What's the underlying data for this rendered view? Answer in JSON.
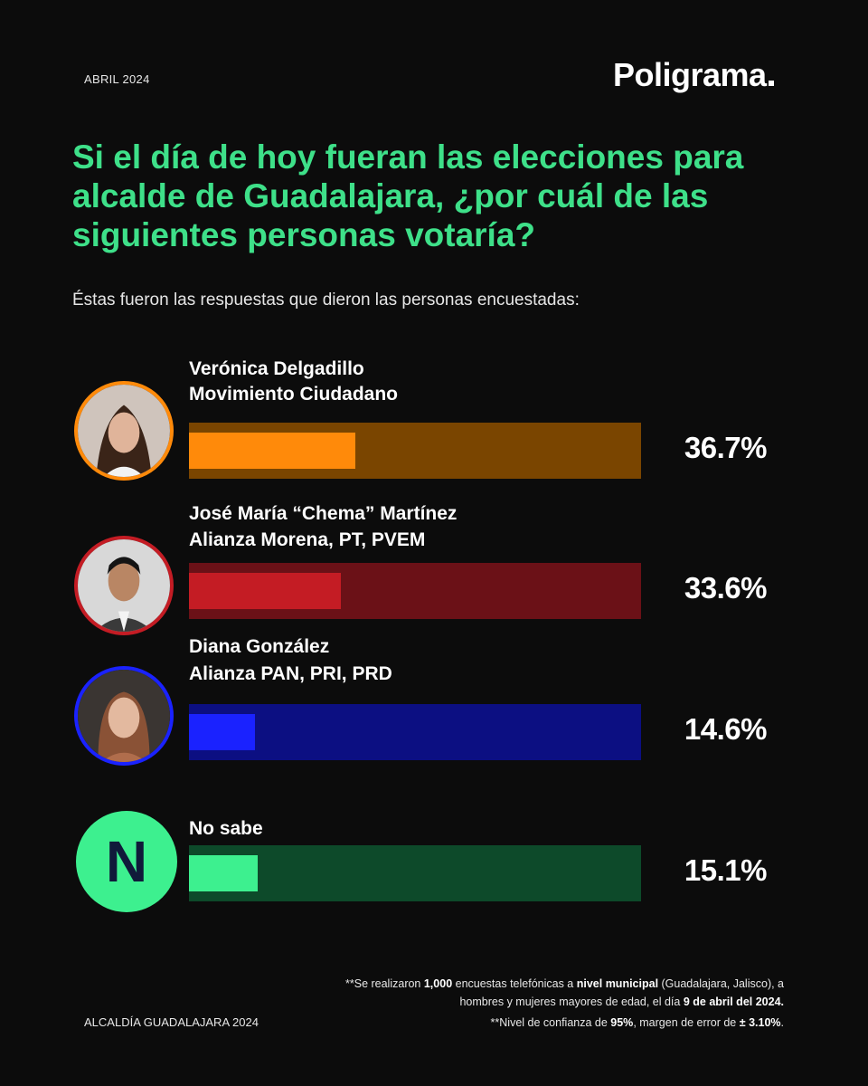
{
  "header": {
    "date": "ABRIL 2024",
    "brand": "Poligrama"
  },
  "question": "Si el día de hoy fueran las elecciones para alcalde de Guadalajara, ¿por cuál de las siguientes personas votaría?",
  "subtitle": "Éstas fueron las respuestas que dieron las personas encuestadas:",
  "colors": {
    "accent_green": "#3ee089",
    "orange": "#ff8a0a",
    "orange_track": "#7a4500",
    "red": "#c41c24",
    "red_track": "#6b1117",
    "blue": "#1a22ff",
    "blue_track": "#0c0f82",
    "green": "#3df08f",
    "green_track": "#0d4a2a"
  },
  "candidates": [
    {
      "name": "Verónica Delgadillo",
      "party": "Movimiento Ciudadano",
      "percent_label": "36.7%",
      "value": 36.7,
      "icon": "woman-portrait-icon"
    },
    {
      "name": "José María “Chema” Martínez",
      "party": "Alianza Morena, PT, PVEM",
      "percent_label": "33.6%",
      "value": 33.6,
      "icon": "man-portrait-icon"
    },
    {
      "name": "Diana González",
      "party": "Alianza PAN, PRI, PRD",
      "percent_label": "14.6%",
      "value": 14.6,
      "icon": "woman-portrait-icon"
    }
  ],
  "no_sabe": {
    "logo_letter": "N",
    "label": "No sabe",
    "percent_label": "15.1%",
    "value": 15.1
  },
  "chart_data": {
    "type": "bar",
    "categories": [
      "Verónica Delgadillo",
      "José María “Chema” Martínez",
      "Diana González",
      "No sabe"
    ],
    "values": [
      36.7,
      33.6,
      14.6,
      15.1
    ],
    "title": "Si el día de hoy fueran las elecciones para alcalde de Guadalajara, ¿por cuál de las siguientes personas votaría?",
    "xlabel": "",
    "ylabel": "",
    "xlim": [
      0,
      100
    ],
    "orientation": "horizontal"
  },
  "footer": {
    "left": "ALCALDÍA GUADALAJARA 2024",
    "note1_a": "**Se realizaron ",
    "note1_b": "1,000",
    "note1_c": " encuestas telefónicas a ",
    "note1_d": "nivel municipal",
    "note1_e": " (Guadalajara, Jalisco), a hombres y mujeres mayores de edad, el día ",
    "note1_f": "9 de abril del 2024.",
    "note2_a": "**Nivel de confianza de ",
    "note2_b": "95%",
    "note2_c": ", margen de error de ",
    "note2_d": "± 3.10%",
    "note2_e": "."
  }
}
